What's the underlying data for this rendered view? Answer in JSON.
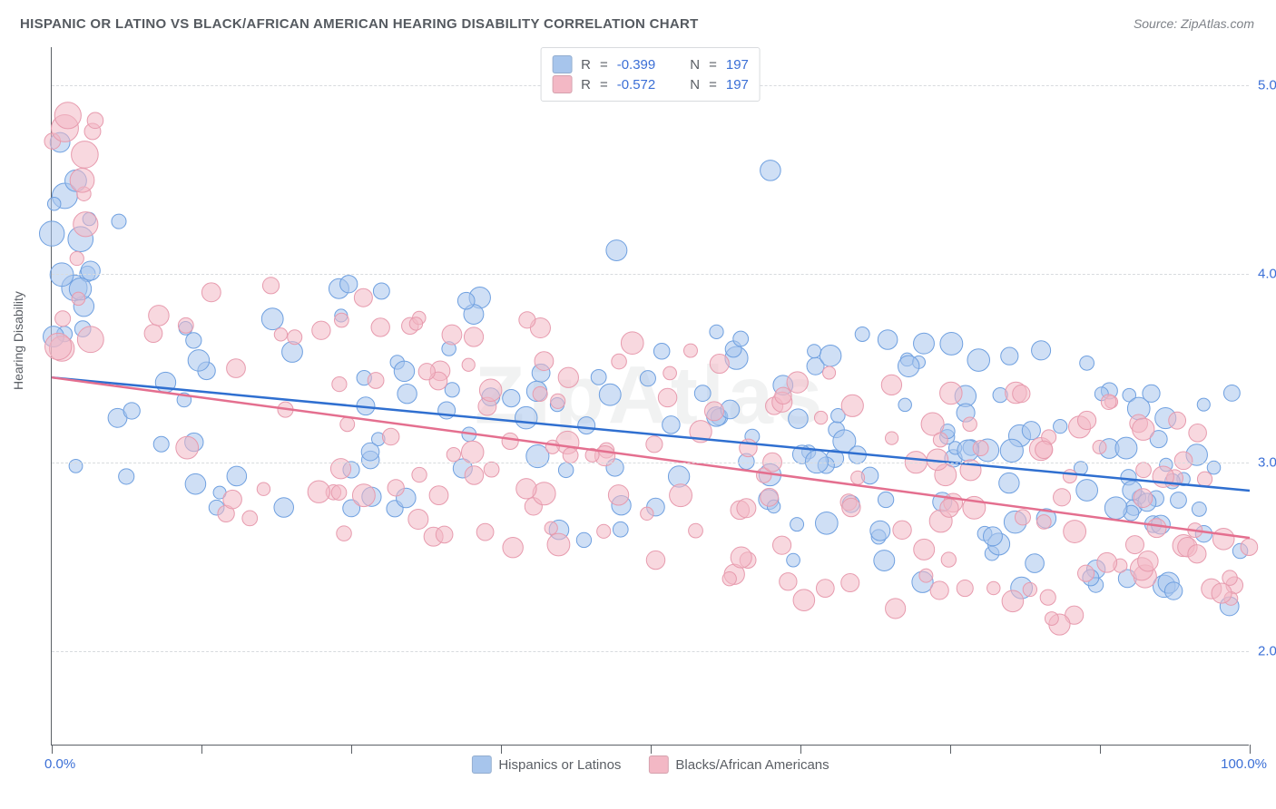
{
  "title": "HISPANIC OR LATINO VS BLACK/AFRICAN AMERICAN HEARING DISABILITY CORRELATION CHART",
  "source_prefix": "Source: ",
  "source_link": "ZipAtlas.com",
  "watermark": "ZipAtlas",
  "chart": {
    "type": "scatter",
    "ylabel": "Hearing Disability",
    "xlim": [
      0,
      100
    ],
    "ylim": [
      1.5,
      5.2
    ],
    "yticks": [
      2.0,
      3.0,
      4.0,
      5.0
    ],
    "ytick_labels": [
      "2.0%",
      "3.0%",
      "4.0%",
      "5.0%"
    ],
    "xtick_positions": [
      0,
      12.5,
      25,
      37.5,
      50,
      62.5,
      75,
      87.5,
      100
    ],
    "x0_label": "0.0%",
    "x100_label": "100.0%",
    "background_color": "#ffffff",
    "grid_color": "#d8dbde",
    "axis_color": "#5b6066",
    "series": [
      {
        "id": "hispanics",
        "label": "Hispanics or Latinos",
        "fill": "#a7c5ec",
        "fill_opacity": 0.55,
        "stroke": "#6fa0e0",
        "line_color": "#2f6fd0",
        "R": "-0.399",
        "N": "197",
        "trend": {
          "x1": 0,
          "y1": 3.45,
          "x2": 100,
          "y2": 2.85
        }
      },
      {
        "id": "blacks",
        "label": "Blacks/African Americans",
        "fill": "#f3b8c5",
        "fill_opacity": 0.55,
        "stroke": "#e79bae",
        "line_color": "#e46f8f",
        "R": "-0.572",
        "N": "197",
        "trend": {
          "x1": 0,
          "y1": 3.45,
          "x2": 100,
          "y2": 2.6
        }
      }
    ],
    "legend_labels": {
      "R": "R",
      "eq": "=",
      "N": "N"
    },
    "marker_r_min": 7,
    "marker_r_max": 15,
    "n_points_per_series": 197,
    "seed": 42
  }
}
